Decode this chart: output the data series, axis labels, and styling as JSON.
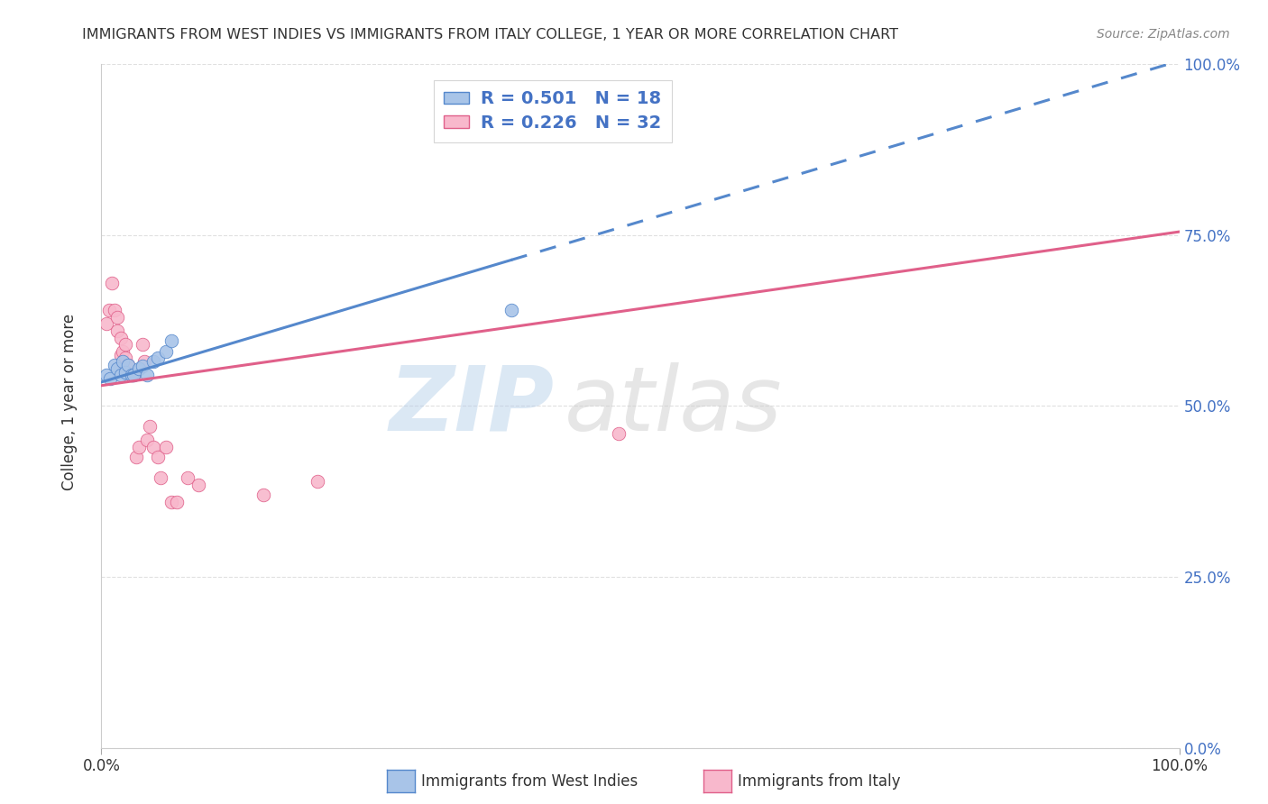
{
  "title": "IMMIGRANTS FROM WEST INDIES VS IMMIGRANTS FROM ITALY COLLEGE, 1 YEAR OR MORE CORRELATION CHART",
  "source": "Source: ZipAtlas.com",
  "ylabel": "College, 1 year or more",
  "xlim": [
    0.0,
    1.0
  ],
  "ylim": [
    0.0,
    1.0
  ],
  "xtick_positions": [
    0.0,
    1.0
  ],
  "xtick_labels": [
    "0.0%",
    "100.0%"
  ],
  "ytick_positions": [
    0.0,
    0.25,
    0.5,
    0.75,
    1.0
  ],
  "ytick_labels": [
    "0.0%",
    "25.0%",
    "50.0%",
    "75.0%",
    "100.0%"
  ],
  "background_color": "#ffffff",
  "grid_color": "#e0e0e0",
  "series_blue": {
    "name": "Immigrants from West Indies",
    "R": 0.501,
    "N": 18,
    "scatter_color": "#a8c4e8",
    "scatter_edge": "#5588cc",
    "line_color": "#5588cc",
    "x": [
      0.005,
      0.008,
      0.012,
      0.015,
      0.018,
      0.02,
      0.022,
      0.025,
      0.028,
      0.03,
      0.035,
      0.038,
      0.042,
      0.048,
      0.052,
      0.06,
      0.065,
      0.38
    ],
    "y": [
      0.545,
      0.54,
      0.56,
      0.555,
      0.545,
      0.565,
      0.55,
      0.56,
      0.545,
      0.545,
      0.555,
      0.558,
      0.545,
      0.565,
      0.57,
      0.58,
      0.595,
      0.64
    ],
    "trend_x0": 0.0,
    "trend_x1": 1.0,
    "trend_y0": 0.535,
    "trend_y1": 1.005
  },
  "series_pink": {
    "name": "Immigrants from Italy",
    "R": 0.226,
    "N": 32,
    "scatter_color": "#f8b8cc",
    "scatter_edge": "#e0608a",
    "line_color": "#e0608a",
    "x": [
      0.005,
      0.007,
      0.01,
      0.012,
      0.015,
      0.015,
      0.018,
      0.018,
      0.02,
      0.02,
      0.022,
      0.022,
      0.025,
      0.028,
      0.03,
      0.032,
      0.035,
      0.038,
      0.04,
      0.042,
      0.045,
      0.048,
      0.052,
      0.055,
      0.06,
      0.065,
      0.07,
      0.08,
      0.09,
      0.15,
      0.2,
      0.48
    ],
    "y": [
      0.62,
      0.64,
      0.68,
      0.64,
      0.63,
      0.61,
      0.6,
      0.575,
      0.56,
      0.58,
      0.59,
      0.57,
      0.56,
      0.545,
      0.545,
      0.425,
      0.44,
      0.59,
      0.565,
      0.45,
      0.47,
      0.44,
      0.425,
      0.395,
      0.44,
      0.36,
      0.36,
      0.395,
      0.385,
      0.37,
      0.39,
      0.46
    ],
    "trend_x0": 0.0,
    "trend_x1": 1.0,
    "trend_y0": 0.53,
    "trend_y1": 0.755
  },
  "legend": {
    "blue_label_r": "R = 0.501",
    "blue_label_n": "N = 18",
    "pink_label_r": "R = 0.226",
    "pink_label_n": "N = 32",
    "blue_face": "#a8c4e8",
    "blue_edge": "#5588cc",
    "pink_face": "#f8b8cc",
    "pink_edge": "#e0608a"
  }
}
